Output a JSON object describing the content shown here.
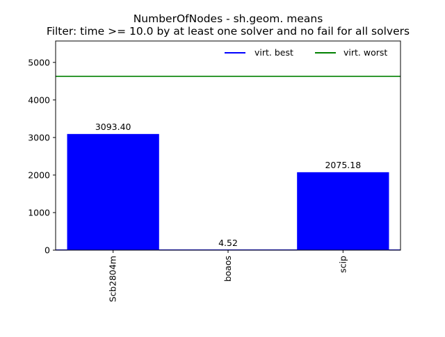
{
  "chart_data": {
    "type": "bar",
    "title": "NumberOfNodes - sh.geom. means",
    "subtitle": "Filter: time >= 10.0 by at least one solver and no fail for all solvers",
    "categories": [
      "Scb2804m",
      "boaos",
      "scip"
    ],
    "values": [
      3093.4,
      4.52,
      2075.18
    ],
    "value_labels": [
      "3093.40",
      "4.52",
      "2075.18"
    ],
    "bar_color": "#0000ff",
    "ylim": [
      0,
      5570
    ],
    "yticks": [
      0,
      1000,
      2000,
      3000,
      4000,
      5000
    ],
    "reference_lines": [
      {
        "name": "virt. best",
        "value": 4.52,
        "color": "#0000ff"
      },
      {
        "name": "virt. worst",
        "value": 4630,
        "color": "#008000"
      }
    ],
    "legend_position": "top-right",
    "grid": false
  }
}
